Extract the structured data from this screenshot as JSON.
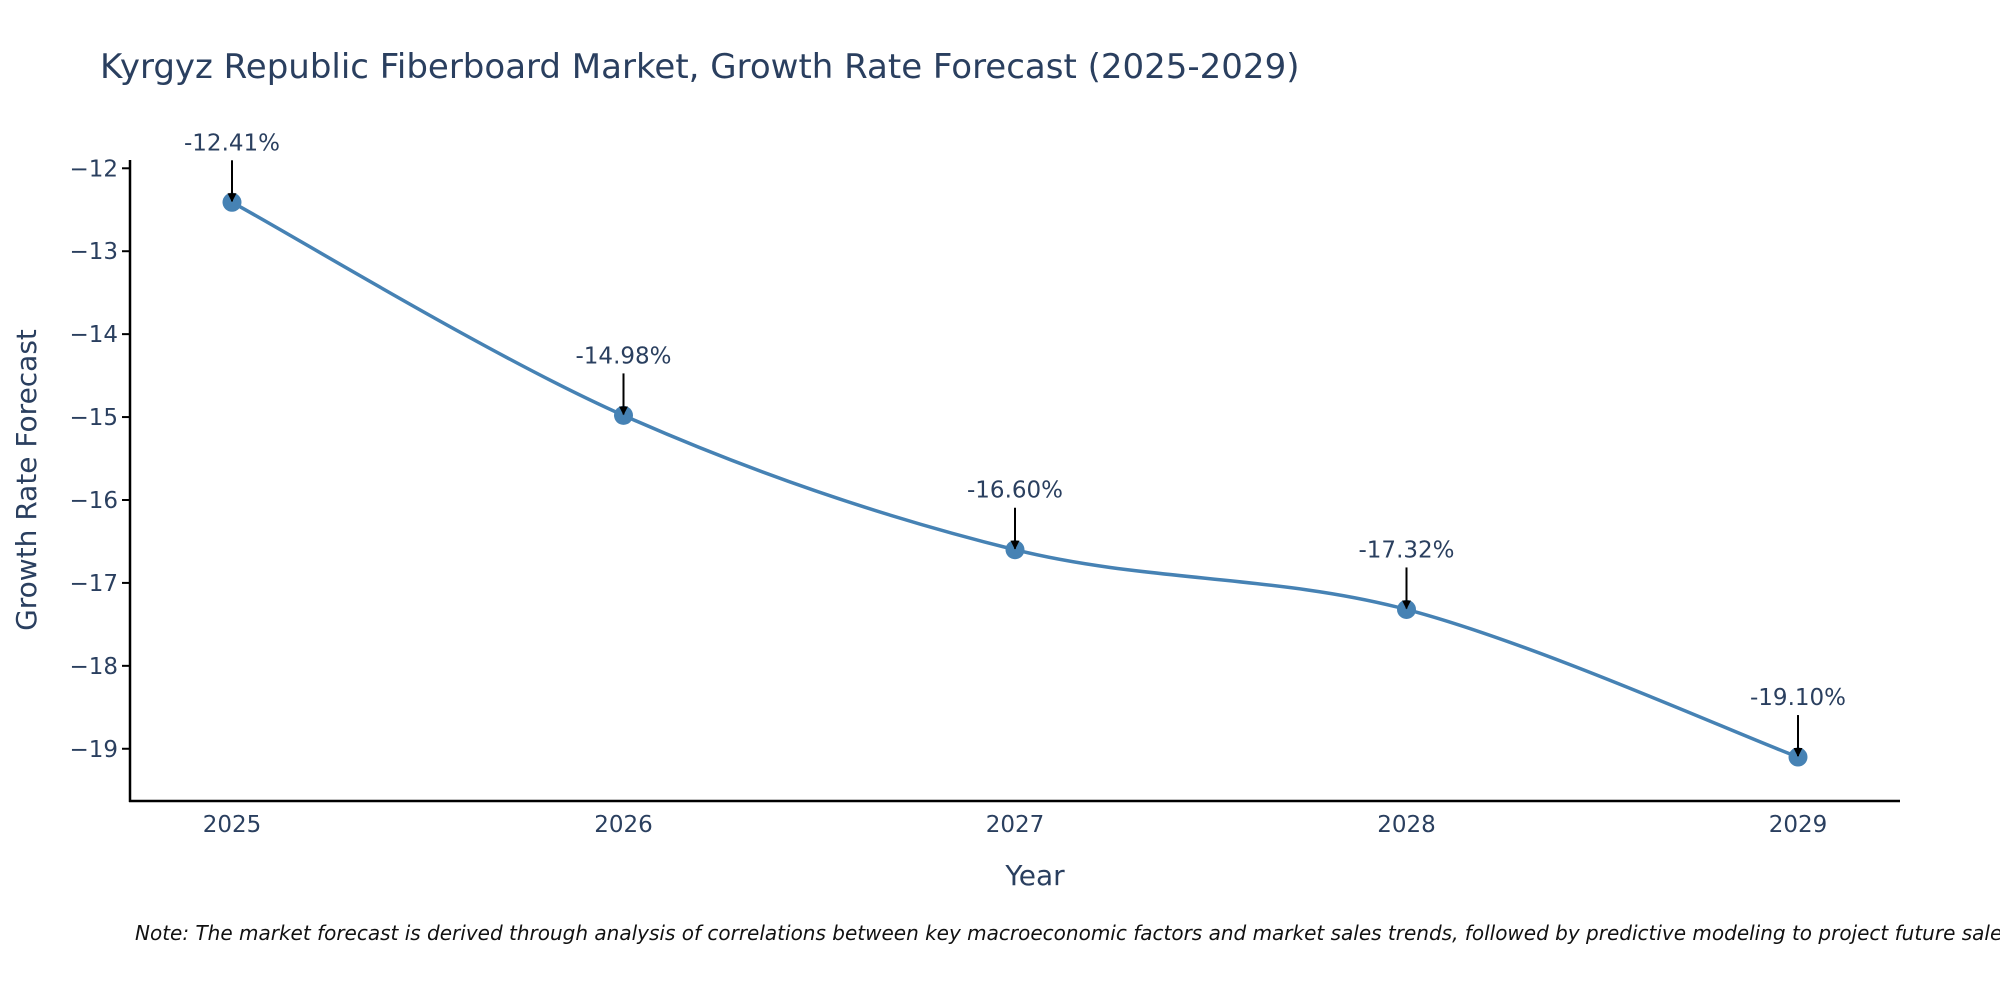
{
  "chart_data": {
    "type": "line",
    "title": "Kyrgyz Republic Fiberboard Market, Growth Rate Forecast (2025-2029)",
    "xlabel": "Year",
    "ylabel": "Growth Rate Forecast",
    "categories": [
      "2025",
      "2026",
      "2027",
      "2028",
      "2029"
    ],
    "values": [
      -12.41,
      -14.98,
      -16.6,
      -17.32,
      -19.1
    ],
    "data_labels": [
      "-12.41%",
      "-14.98%",
      "-16.60%",
      "-17.32%",
      "-19.10%"
    ],
    "y_ticks": [
      -12,
      -13,
      -14,
      -15,
      -16,
      -17,
      -18,
      -19
    ],
    "y_tick_labels": [
      "−12",
      "−13",
      "−14",
      "−15",
      "−16",
      "−17",
      "−18",
      "−19"
    ],
    "ylim": [
      -19.63,
      -11.9
    ],
    "line_color": "#4682b4",
    "marker_color": "#4682b4",
    "grid": false,
    "legend": "none"
  },
  "note": "Note: The market forecast is derived through analysis of correlations between key macroeconomic factors and market sales trends, followed by predictive modeling to project future sales."
}
